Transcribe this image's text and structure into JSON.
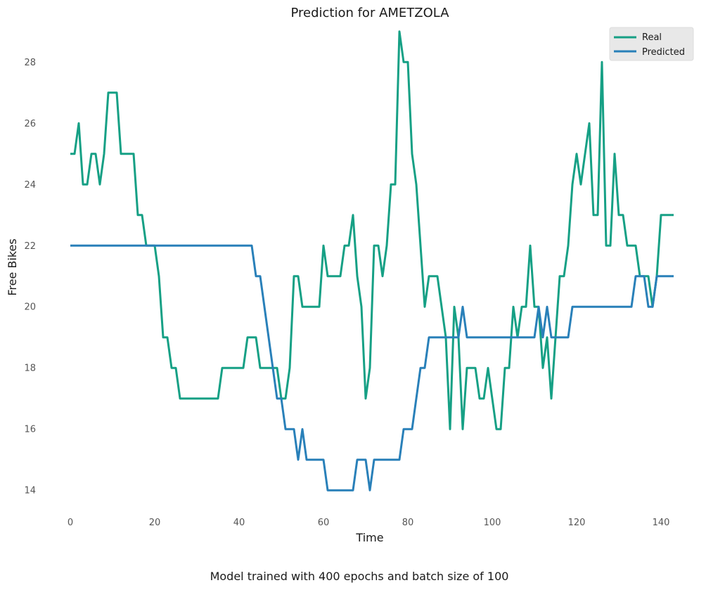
{
  "chart_data": {
    "type": "line",
    "title": "Prediction for AMETZOLA",
    "xlabel": "Time",
    "ylabel": "Free Bikes",
    "caption": "Model trained with 400 epochs and batch size of 100",
    "xlim": [
      -2.5,
      144.5
    ],
    "ylim": [
      13.2,
      29.8
    ],
    "xticks": [
      0,
      20,
      40,
      60,
      80,
      100,
      120,
      140
    ],
    "yticks": [
      14,
      16,
      18,
      20,
      22,
      24,
      26,
      28
    ],
    "grid": false,
    "legend_position": "top-right",
    "series": [
      {
        "name": "Real",
        "color": "#16a085",
        "values": [
          25,
          25,
          26,
          24,
          24,
          25,
          25,
          24,
          25,
          27,
          27,
          27,
          25,
          25,
          25,
          25,
          23,
          23,
          22,
          22,
          22,
          21,
          19,
          19,
          18,
          18,
          17,
          17,
          17,
          17,
          17,
          17,
          17,
          17,
          17,
          17,
          18,
          18,
          18,
          18,
          18,
          18,
          19,
          19,
          19,
          18,
          18,
          18,
          18,
          18,
          17,
          17,
          18,
          21,
          21,
          20,
          20,
          20,
          20,
          20,
          22,
          21,
          21,
          21,
          21,
          22,
          22,
          23,
          21,
          20,
          17,
          18,
          22,
          22,
          21,
          22,
          24,
          24,
          29,
          28,
          28,
          25,
          24,
          22,
          20,
          21,
          21,
          21,
          20,
          19,
          16,
          20,
          19,
          16,
          18,
          18,
          18,
          17,
          17,
          18,
          17,
          16,
          16,
          18,
          18,
          20,
          19,
          20,
          20,
          22,
          20,
          20,
          18,
          19,
          17,
          19,
          21,
          21,
          22,
          24,
          25,
          24,
          25,
          26,
          23,
          23,
          28,
          22,
          22,
          25,
          23,
          23,
          22,
          22,
          22,
          21,
          21,
          21,
          20,
          21,
          23,
          23,
          23,
          23
        ]
      },
      {
        "name": "Predicted",
        "color": "#2980b9",
        "values": [
          22,
          22,
          22,
          22,
          22,
          22,
          22,
          22,
          22,
          22,
          22,
          22,
          22,
          22,
          22,
          22,
          22,
          22,
          22,
          22,
          22,
          22,
          22,
          22,
          22,
          22,
          22,
          22,
          22,
          22,
          22,
          22,
          22,
          22,
          22,
          22,
          22,
          22,
          22,
          22,
          22,
          22,
          22,
          22,
          21,
          21,
          20,
          19,
          18,
          17,
          17,
          16,
          16,
          16,
          15,
          16,
          15,
          15,
          15,
          15,
          15,
          14,
          14,
          14,
          14,
          14,
          14,
          14,
          15,
          15,
          15,
          14,
          15,
          15,
          15,
          15,
          15,
          15,
          15,
          16,
          16,
          16,
          17,
          18,
          18,
          19,
          19,
          19,
          19,
          19,
          19,
          19,
          19,
          20,
          19,
          19,
          19,
          19,
          19,
          19,
          19,
          19,
          19,
          19,
          19,
          19,
          19,
          19,
          19,
          19,
          19,
          20,
          19,
          20,
          19,
          19,
          19,
          19,
          19,
          20,
          20,
          20,
          20,
          20,
          20,
          20,
          20,
          20,
          20,
          20,
          20,
          20,
          20,
          20,
          21,
          21,
          21,
          20,
          20,
          21,
          21,
          21,
          21,
          21
        ]
      }
    ]
  }
}
